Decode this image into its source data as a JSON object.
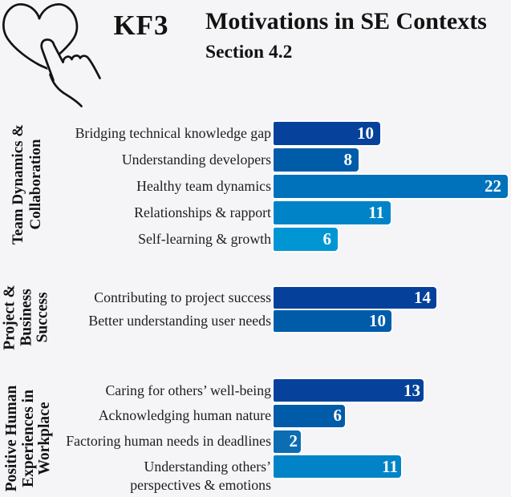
{
  "header": {
    "badge": "KF3",
    "title": "Motivations in SE Contexts",
    "subtitle": "Section 4.2",
    "icon": "heart-tap-icon"
  },
  "colors": {
    "background": "#f5f4f6",
    "text": "#121212",
    "bar_value_text": "#ffffff",
    "bar_edge": "#ffffff"
  },
  "chart_data": {
    "type": "bar",
    "orientation": "horizontal",
    "value_labels": "inside-right",
    "grid": false,
    "legend": false,
    "groups": [
      {
        "name": "Team Dynamics & Collaboration",
        "name_lines": [
          "Team Dynamics &",
          "Collaboration"
        ],
        "bars": [
          {
            "label": "Bridging technical knowledge gap",
            "value": 10,
            "color": "#06429b"
          },
          {
            "label": "Understanding developers",
            "value": 8,
            "color": "#005ba9"
          },
          {
            "label": "Healthy team dynamics",
            "value": 22,
            "color": "#0071bb"
          },
          {
            "label": "Relationships & rapport",
            "value": 11,
            "color": "#0084c7"
          },
          {
            "label": "Self-learning & growth",
            "value": 6,
            "color": "#0096d3"
          }
        ]
      },
      {
        "name": "Project & Business Success",
        "name_lines": [
          "Project &",
          "Business",
          "Success"
        ],
        "bars": [
          {
            "label": "Contributing to project success",
            "value": 14,
            "color": "#05419b"
          },
          {
            "label": "Better understanding user needs",
            "value": 10,
            "color": "#005ca9"
          }
        ]
      },
      {
        "name": "Positive Human Experiences in Workplace",
        "name_lines": [
          "Positive Human",
          "Experiences in",
          "Workplace"
        ],
        "bars": [
          {
            "label": "Caring for others’ well-being",
            "value": 13,
            "color": "#06429b"
          },
          {
            "label": "Acknowledging human nature",
            "value": 6,
            "color": "#005ba9"
          },
          {
            "label": "Factoring human needs in deadlines",
            "value": 2,
            "color": "#0d6db2"
          },
          {
            "label": "Understanding others’ perspectives & emotions",
            "label_lines": [
              "Understanding others’",
              "perspectives & emotions"
            ],
            "value": 11,
            "color": "#0084c7"
          }
        ]
      }
    ]
  }
}
